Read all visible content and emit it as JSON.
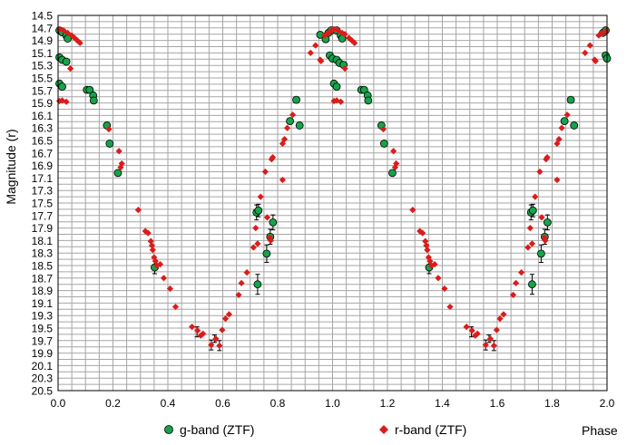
{
  "chart_data": {
    "type": "scatter",
    "xlabel": "Phase",
    "ylabel": "Magnitude (r)",
    "xlim": [
      0.0,
      2.0
    ],
    "ylim": [
      14.5,
      20.5
    ],
    "y_inverted": true,
    "x_ticks": [
      "0.0",
      "0.2",
      "0.4",
      "0.6",
      "0.8",
      "1.0",
      "1.2",
      "1.4",
      "1.6",
      "1.8",
      "2.0"
    ],
    "y_ticks": [
      "14.5",
      "14.7",
      "14.9",
      "15.1",
      "15.3",
      "15.5",
      "15.7",
      "15.9",
      "16.1",
      "16.3",
      "16.5",
      "16.7",
      "16.9",
      "17.1",
      "17.3",
      "17.5",
      "17.7",
      "17.9",
      "18.1",
      "18.3",
      "18.5",
      "18.7",
      "18.9",
      "19.1",
      "19.3",
      "19.5",
      "19.7",
      "19.9",
      "20.1",
      "20.3",
      "20.5"
    ],
    "grid": true,
    "legend_position": "bottom",
    "series": [
      {
        "name": "g-band (ZTF)",
        "color": "#16a34a",
        "marker": "circle",
        "points": [
          [
            0.005,
            14.74
          ],
          [
            0.015,
            14.77
          ],
          [
            0.03,
            14.82
          ],
          [
            0.035,
            14.87
          ],
          [
            0.005,
            15.17
          ],
          [
            0.015,
            15.21
          ],
          [
            0.03,
            15.24
          ],
          [
            0.005,
            15.59
          ],
          [
            0.015,
            15.64
          ],
          [
            0.105,
            15.69
          ],
          [
            0.115,
            15.69
          ],
          [
            0.128,
            15.78
          ],
          [
            0.13,
            15.86
          ],
          [
            0.178,
            16.26
          ],
          [
            0.188,
            16.55
          ],
          [
            0.218,
            17.02
          ],
          [
            0.352,
            18.53
          ],
          [
            0.723,
            17.65
          ],
          [
            0.727,
            18.8
          ],
          [
            0.73,
            17.62
          ],
          [
            0.76,
            18.31
          ],
          [
            0.773,
            18.04
          ],
          [
            0.783,
            17.81
          ],
          [
            0.845,
            16.19
          ],
          [
            0.868,
            15.85
          ],
          [
            0.88,
            16.26
          ],
          [
            0.955,
            14.81
          ],
          [
            0.975,
            14.88
          ],
          [
            0.985,
            14.78
          ],
          [
            0.995,
            14.74
          ],
          [
            1.015,
            14.74
          ],
          [
            1.03,
            14.82
          ],
          [
            1.035,
            14.87
          ],
          [
            0.99,
            15.14
          ],
          [
            1.0,
            15.19
          ],
          [
            1.015,
            15.21
          ],
          [
            1.025,
            15.26
          ],
          [
            1.04,
            15.29
          ],
          [
            1.005,
            15.59
          ],
          [
            1.015,
            15.64
          ],
          [
            1.105,
            15.69
          ],
          [
            1.115,
            15.69
          ],
          [
            1.128,
            15.78
          ],
          [
            1.13,
            15.86
          ],
          [
            1.178,
            16.26
          ],
          [
            1.188,
            16.55
          ],
          [
            1.218,
            17.02
          ],
          [
            1.352,
            18.53
          ],
          [
            1.723,
            17.65
          ],
          [
            1.727,
            18.8
          ],
          [
            1.73,
            17.62
          ],
          [
            1.76,
            18.31
          ],
          [
            1.773,
            18.04
          ],
          [
            1.783,
            17.81
          ],
          [
            1.845,
            16.19
          ],
          [
            1.868,
            15.85
          ],
          [
            1.88,
            16.26
          ],
          [
            1.985,
            14.78
          ],
          [
            1.995,
            14.74
          ],
          [
            1.995,
            15.14
          ],
          [
            2.0,
            15.19
          ]
        ]
      },
      {
        "name": "r-band (ZTF)",
        "color": "#dc1c1c",
        "marker": "diamond",
        "points": [
          [
            0.005,
            14.72
          ],
          [
            0.02,
            14.74
          ],
          [
            0.035,
            14.78
          ],
          [
            0.05,
            14.82
          ],
          [
            0.06,
            14.86
          ],
          [
            0.07,
            14.9
          ],
          [
            0.08,
            14.94
          ],
          [
            0.045,
            15.35
          ],
          [
            0.005,
            15.87
          ],
          [
            0.015,
            15.86
          ],
          [
            0.03,
            15.88
          ],
          [
            0.185,
            16.32
          ],
          [
            0.222,
            16.67
          ],
          [
            0.228,
            16.93
          ],
          [
            0.232,
            16.87
          ],
          [
            0.292,
            17.61
          ],
          [
            0.318,
            17.95
          ],
          [
            0.328,
            17.98
          ],
          [
            0.338,
            18.11
          ],
          [
            0.342,
            18.18
          ],
          [
            0.345,
            18.25
          ],
          [
            0.35,
            18.37
          ],
          [
            0.355,
            18.43
          ],
          [
            0.36,
            18.5
          ],
          [
            0.372,
            18.48
          ],
          [
            0.385,
            18.7
          ],
          [
            0.408,
            18.87
          ],
          [
            0.428,
            19.16
          ],
          [
            0.488,
            19.48
          ],
          [
            0.508,
            19.54
          ],
          [
            0.52,
            19.62
          ],
          [
            0.528,
            19.59
          ],
          [
            0.558,
            19.77
          ],
          [
            0.575,
            19.67
          ],
          [
            0.588,
            19.78
          ],
          [
            0.598,
            19.53
          ],
          [
            0.61,
            19.35
          ],
          [
            0.623,
            19.28
          ],
          [
            0.658,
            18.97
          ],
          [
            0.668,
            18.78
          ],
          [
            0.688,
            18.61
          ],
          [
            0.712,
            18.21
          ],
          [
            0.72,
            17.9
          ],
          [
            0.727,
            18.15
          ],
          [
            0.738,
            17.4
          ],
          [
            0.762,
            17.73
          ],
          [
            0.772,
            18.05
          ],
          [
            0.775,
            18.1
          ],
          [
            0.778,
            16.8
          ],
          [
            0.782,
            16.77
          ],
          [
            0.755,
            17.0
          ],
          [
            0.818,
            17.13
          ],
          [
            0.818,
            16.55
          ],
          [
            0.825,
            16.48
          ],
          [
            0.835,
            16.3
          ],
          [
            0.855,
            16.09
          ],
          [
            0.92,
            15.1
          ],
          [
            0.938,
            14.98
          ],
          [
            0.955,
            15.21
          ],
          [
            0.958,
            15.23
          ],
          [
            0.97,
            14.82
          ],
          [
            0.982,
            14.79
          ],
          [
            0.995,
            14.75
          ],
          [
            1.005,
            14.72
          ],
          [
            1.02,
            14.74
          ],
          [
            1.035,
            14.78
          ],
          [
            1.045,
            14.8
          ],
          [
            1.06,
            14.86
          ],
          [
            1.07,
            14.9
          ],
          [
            1.08,
            14.94
          ],
          [
            1.045,
            15.35
          ],
          [
            1.005,
            15.87
          ],
          [
            1.015,
            15.86
          ],
          [
            1.03,
            15.88
          ],
          [
            1.185,
            16.32
          ],
          [
            1.222,
            16.67
          ],
          [
            1.228,
            16.93
          ],
          [
            1.232,
            16.87
          ],
          [
            1.292,
            17.61
          ],
          [
            1.318,
            17.95
          ],
          [
            1.328,
            17.98
          ],
          [
            1.338,
            18.11
          ],
          [
            1.342,
            18.18
          ],
          [
            1.345,
            18.25
          ],
          [
            1.35,
            18.37
          ],
          [
            1.355,
            18.43
          ],
          [
            1.36,
            18.5
          ],
          [
            1.372,
            18.48
          ],
          [
            1.385,
            18.7
          ],
          [
            1.408,
            18.87
          ],
          [
            1.428,
            19.16
          ],
          [
            1.488,
            19.48
          ],
          [
            1.508,
            19.54
          ],
          [
            1.52,
            19.62
          ],
          [
            1.528,
            19.59
          ],
          [
            1.558,
            19.77
          ],
          [
            1.575,
            19.67
          ],
          [
            1.588,
            19.78
          ],
          [
            1.598,
            19.53
          ],
          [
            1.61,
            19.35
          ],
          [
            1.623,
            19.28
          ],
          [
            1.658,
            18.97
          ],
          [
            1.668,
            18.78
          ],
          [
            1.688,
            18.61
          ],
          [
            1.712,
            18.21
          ],
          [
            1.72,
            17.9
          ],
          [
            1.727,
            18.15
          ],
          [
            1.738,
            17.4
          ],
          [
            1.762,
            17.73
          ],
          [
            1.772,
            18.05
          ],
          [
            1.775,
            18.1
          ],
          [
            1.778,
            16.8
          ],
          [
            1.782,
            16.77
          ],
          [
            1.755,
            17.0
          ],
          [
            1.818,
            17.13
          ],
          [
            1.818,
            16.55
          ],
          [
            1.825,
            16.48
          ],
          [
            1.835,
            16.3
          ],
          [
            1.855,
            16.09
          ],
          [
            1.92,
            15.1
          ],
          [
            1.938,
            14.98
          ],
          [
            1.955,
            15.21
          ],
          [
            1.958,
            15.23
          ],
          [
            1.97,
            14.82
          ],
          [
            1.982,
            14.79
          ],
          [
            1.995,
            14.75
          ]
        ]
      }
    ],
    "errorbars": [
      {
        "x": 0.352,
        "y": 18.53,
        "err": 0.1
      },
      {
        "x": 0.506,
        "y": 19.56,
        "err": 0.08
      },
      {
        "x": 0.558,
        "y": 19.77,
        "err": 0.08
      },
      {
        "x": 0.57,
        "y": 19.67,
        "err": 0.06
      },
      {
        "x": 0.588,
        "y": 19.78,
        "err": 0.08
      },
      {
        "x": 0.727,
        "y": 18.8,
        "err": 0.16
      },
      {
        "x": 0.723,
        "y": 17.65,
        "err": 0.12
      },
      {
        "x": 0.73,
        "y": 17.62,
        "err": 0.1
      },
      {
        "x": 0.76,
        "y": 18.31,
        "err": 0.14
      },
      {
        "x": 0.773,
        "y": 18.04,
        "err": 0.12
      },
      {
        "x": 0.783,
        "y": 17.81,
        "err": 0.12
      },
      {
        "x": 1.352,
        "y": 18.53,
        "err": 0.1
      },
      {
        "x": 1.506,
        "y": 19.56,
        "err": 0.08
      },
      {
        "x": 1.558,
        "y": 19.77,
        "err": 0.08
      },
      {
        "x": 1.57,
        "y": 19.67,
        "err": 0.06
      },
      {
        "x": 1.588,
        "y": 19.78,
        "err": 0.08
      },
      {
        "x": 1.727,
        "y": 18.8,
        "err": 0.16
      },
      {
        "x": 1.723,
        "y": 17.65,
        "err": 0.12
      },
      {
        "x": 1.73,
        "y": 17.62,
        "err": 0.1
      },
      {
        "x": 1.76,
        "y": 18.31,
        "err": 0.14
      },
      {
        "x": 1.773,
        "y": 18.04,
        "err": 0.12
      },
      {
        "x": 1.783,
        "y": 17.81,
        "err": 0.12
      }
    ]
  }
}
